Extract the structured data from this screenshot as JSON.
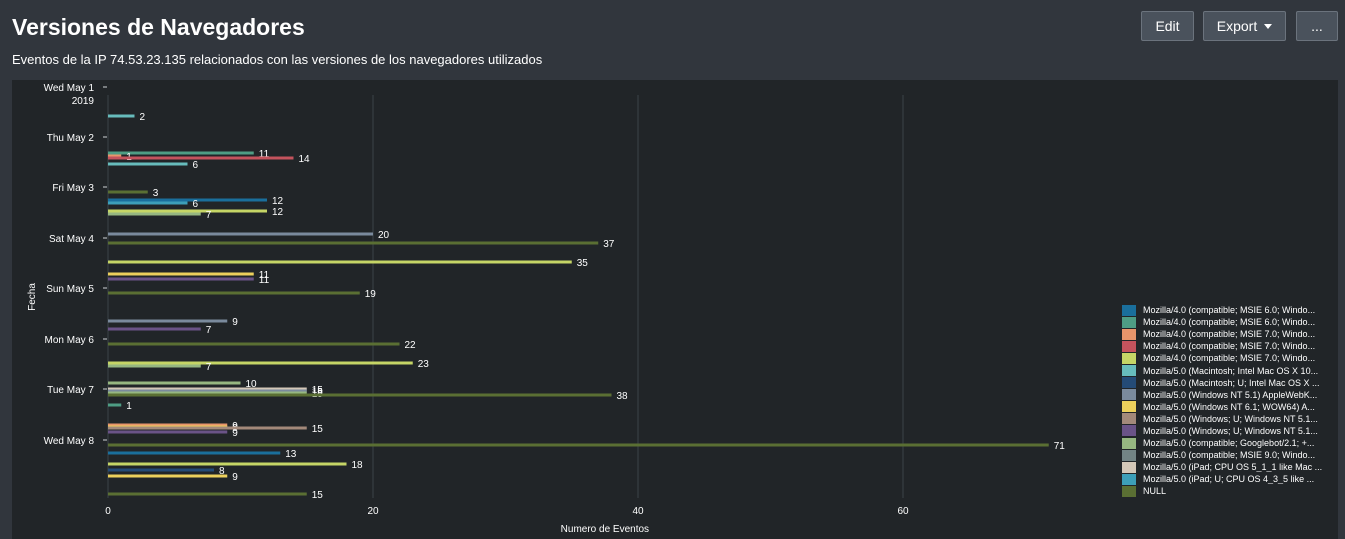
{
  "header": {
    "title": "Versiones de Navegadores",
    "subtitle": "Eventos de la IP 74.53.23.135 relacionados con las versiones de los navegadores utilizados",
    "edit_label": "Edit",
    "export_label": "Export",
    "more_label": "..."
  },
  "chart_data": {
    "type": "bar",
    "orientation": "horizontal",
    "title": "",
    "xlabel": "Numero de Eventos",
    "ylabel": "Fecha",
    "xlim": [
      0,
      80
    ],
    "xticks": [
      0,
      20,
      40,
      60
    ],
    "grid": true,
    "legend_position": "right",
    "categories": [
      "Wed May 1 2019",
      "Thu May 2",
      "Fri May 3",
      "Sat May 4",
      "Sun May 5",
      "Mon May 6",
      "Tue May 7",
      "Wed May 8"
    ],
    "series": [
      {
        "name": "Mozilla/4.0 (compatible; MSIE 6.0; Windo...",
        "color": "#1a6f9c"
      },
      {
        "name": "Mozilla/4.0 (compatible; MSIE 6.0; Windo...",
        "color": "#4e9d84"
      },
      {
        "name": "Mozilla/4.0 (compatible; MSIE 7.0; Windo...",
        "color": "#e8956b"
      },
      {
        "name": "Mozilla/4.0 (compatible; MSIE 7.0; Windo...",
        "color": "#c4535d"
      },
      {
        "name": "Mozilla/4.0 (compatible; MSIE 7.0; Windo...",
        "color": "#c5d566"
      },
      {
        "name": "Mozilla/5.0 (Macintosh; Intel Mac OS X 10...",
        "color": "#67bcbc"
      },
      {
        "name": "Mozilla/5.0 (Macintosh; U; Intel Mac OS X ...",
        "color": "#244b77"
      },
      {
        "name": "Mozilla/5.0 (Windows NT 5.1) AppleWebK...",
        "color": "#7a8a9d"
      },
      {
        "name": "Mozilla/5.0 (Windows NT 6.1; WOW64) A...",
        "color": "#ecd05c"
      },
      {
        "name": "Mozilla/5.0 (Windows; U; Windows NT 5.1...",
        "color": "#a3897a"
      },
      {
        "name": "Mozilla/5.0 (Windows; U; Windows NT 5.1...",
        "color": "#6a5387"
      },
      {
        "name": "Mozilla/5.0 (compatible; Googlebot/2.1; +...",
        "color": "#96b781"
      },
      {
        "name": "Mozilla/5.0 (compatible; MSIE 9.0; Windo...",
        "color": "#738485"
      },
      {
        "name": "Mozilla/5.0 (iPad; CPU OS 5_1_1 like Mac ...",
        "color": "#d4c8b8"
      },
      {
        "name": "Mozilla/5.0 (iPad; U; CPU OS 4_3_5 like ...",
        "color": "#3d9fb8"
      },
      {
        "name": "NULL",
        "color": "#5a6f33"
      }
    ],
    "bars": [
      {
        "series": 5,
        "y": 116,
        "value": 2
      },
      {
        "series": 1,
        "y": 153,
        "value": 11
      },
      {
        "series": 2,
        "y": 156,
        "value": 1
      },
      {
        "series": 3,
        "y": 158,
        "value": 14
      },
      {
        "series": 5,
        "y": 164,
        "value": 6
      },
      {
        "series": 15,
        "y": 192,
        "value": 3
      },
      {
        "series": 0,
        "y": 200,
        "value": 12
      },
      {
        "series": 14,
        "y": 203,
        "value": 6
      },
      {
        "series": 4,
        "y": 211,
        "value": 12
      },
      {
        "series": 11,
        "y": 214,
        "value": 7
      },
      {
        "series": 7,
        "y": 234,
        "value": 20
      },
      {
        "series": 15,
        "y": 243,
        "value": 37
      },
      {
        "series": 4,
        "y": 262,
        "value": 35
      },
      {
        "series": 8,
        "y": 274,
        "value": 11
      },
      {
        "series": 10,
        "y": 279,
        "value": 11
      },
      {
        "series": 15,
        "y": 293,
        "value": 19
      },
      {
        "series": 7,
        "y": 321,
        "value": 9
      },
      {
        "series": 10,
        "y": 329,
        "value": 7
      },
      {
        "series": 15,
        "y": 344,
        "value": 22
      },
      {
        "series": 4,
        "y": 363,
        "value": 23
      },
      {
        "series": 11,
        "y": 366,
        "value": 7
      },
      {
        "series": 11,
        "y": 383,
        "value": 10
      },
      {
        "series": 13,
        "y": 389,
        "value": 15
      },
      {
        "series": 7,
        "y": 391,
        "value": 15
      },
      {
        "series": 11,
        "y": 393,
        "value": 15
      },
      {
        "series": 15,
        "y": 395,
        "value": 38
      },
      {
        "series": 1,
        "y": 405,
        "value": 1
      },
      {
        "series": 2,
        "y": 425,
        "value": 9
      },
      {
        "series": 8,
        "y": 427,
        "value": 9
      },
      {
        "series": 9,
        "y": 428,
        "value": 15
      },
      {
        "series": 10,
        "y": 432,
        "value": 9
      },
      {
        "series": 15,
        "y": 445,
        "value": 71
      },
      {
        "series": 0,
        "y": 453,
        "value": 13
      },
      {
        "series": 4,
        "y": 464,
        "value": 18
      },
      {
        "series": 6,
        "y": 470,
        "value": 8
      },
      {
        "series": 8,
        "y": 476,
        "value": 9
      },
      {
        "series": 15,
        "y": 494,
        "value": 15
      }
    ]
  }
}
